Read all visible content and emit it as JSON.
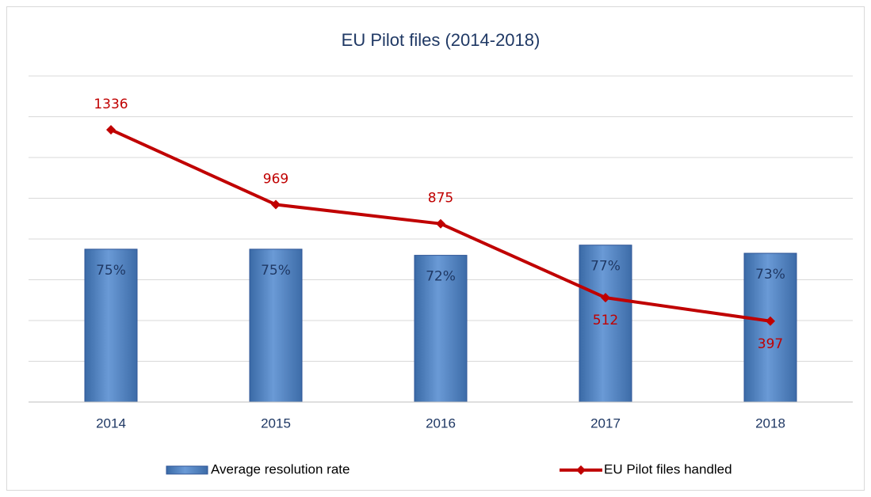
{
  "chart_data": {
    "type": "bar-line",
    "title": "EU Pilot files (2014-2018)",
    "categories": [
      "2014",
      "2015",
      "2016",
      "2017",
      "2018"
    ],
    "series": [
      {
        "name": "Average resolution rate",
        "type": "bar",
        "color": "#4f81bd",
        "values": [
          75,
          75,
          72,
          77,
          73
        ],
        "value_labels": [
          "75%",
          "75%",
          "72%",
          "77%",
          "73%"
        ]
      },
      {
        "name": "EU Pilot files handled",
        "type": "line",
        "axis": "y2",
        "color": "#c00000",
        "values": [
          1336,
          969,
          875,
          512,
          397
        ]
      }
    ],
    "ylim": [
      0,
      160
    ],
    "y2lim": [
      0,
      1600
    ],
    "y2ticks": [
      0,
      200,
      400,
      600,
      800,
      1000,
      1200,
      1400,
      1600
    ],
    "grid": true,
    "legend": "bottom"
  }
}
